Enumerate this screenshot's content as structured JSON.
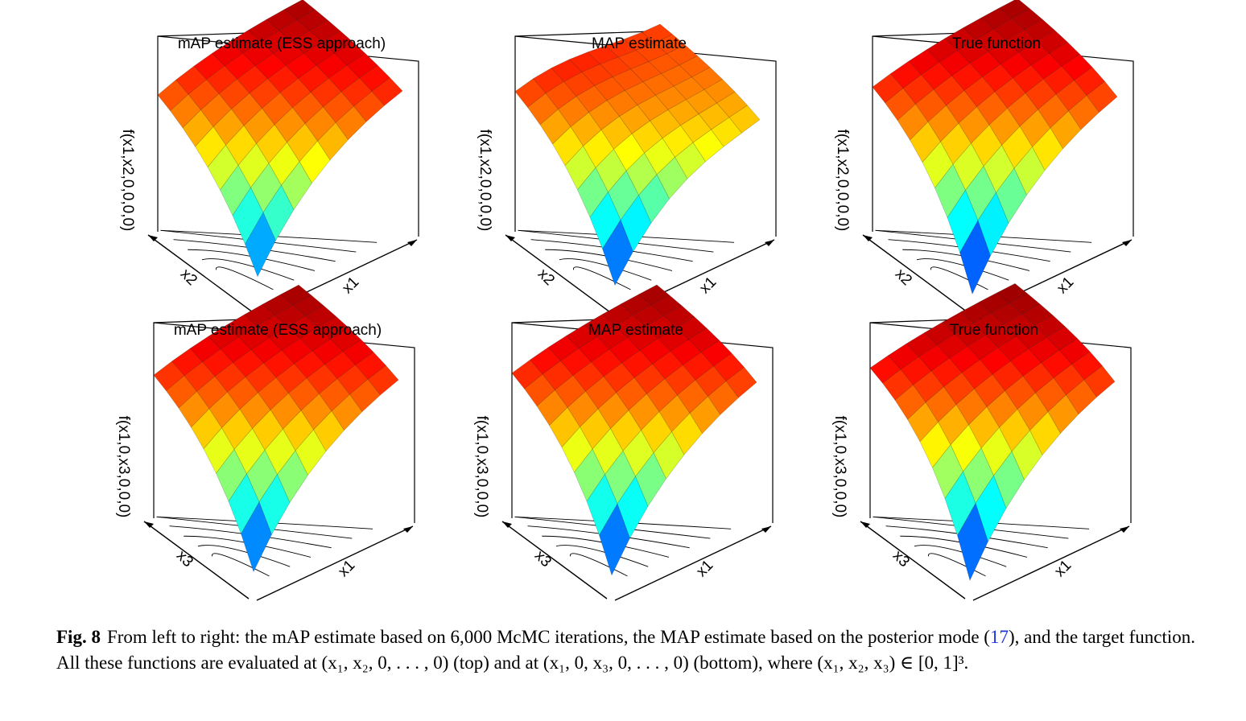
{
  "figure": {
    "panels": [
      {
        "title": "mAP estimate (ESS approach)",
        "zlabel": "f(x1,x2,0,0,0,0)",
        "xlabel_right": "x1",
        "xlabel_left": "x2",
        "surface": "mAP-top"
      },
      {
        "title": "MAP estimate",
        "zlabel": "f(x1,x2,0,0,0,0)",
        "xlabel_right": "x1",
        "xlabel_left": "x2",
        "surface": "MAP-top"
      },
      {
        "title": "True function",
        "zlabel": "f(x1,x2,0,0,0,0)",
        "xlabel_right": "x1",
        "xlabel_left": "x2",
        "surface": "true-top"
      },
      {
        "title": "mAP estimate (ESS approach)",
        "zlabel": "f(x1,0,x3,0,0,0)",
        "xlabel_right": "x1",
        "xlabel_left": "x3",
        "surface": "mAP-bottom"
      },
      {
        "title": "MAP estimate",
        "zlabel": "f(x1,0,x3,0,0,0)",
        "xlabel_right": "x1",
        "xlabel_left": "x3",
        "surface": "MAP-bottom"
      },
      {
        "title": "True function",
        "zlabel": "f(x1,0,x3,0,0,0)",
        "xlabel_right": "x1",
        "xlabel_left": "x3",
        "surface": "true-bottom"
      }
    ],
    "colormap": [
      "#00008f",
      "#0000ff",
      "#0080ff",
      "#00ffff",
      "#80ff80",
      "#ffff00",
      "#ff8000",
      "#ff0000",
      "#800000"
    ]
  },
  "caption": {
    "label": "Fig. 8",
    "text_1": "From left to right: the mAP estimate based on 6,000 McMC iterations, the MAP estimate based on the posterior mode (",
    "ref": "17",
    "text_2": "), and the target function. All these functions are evaluated at (x₁, x₂, 0, . . . , 0) (top) and at (x₁, 0, x₃, 0, . . . , 0) (bottom), where (x₁, x₂, x₃) ∈ [0, 1]³."
  }
}
